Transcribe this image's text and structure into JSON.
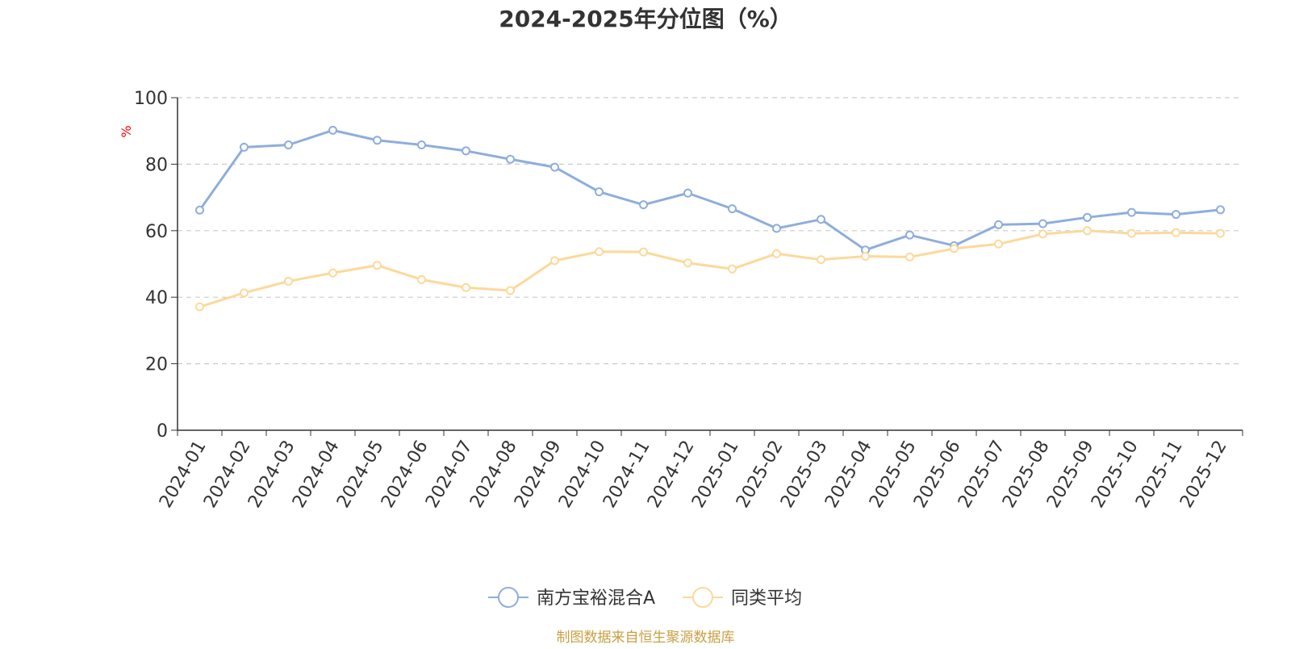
{
  "chart_data": {
    "type": "line",
    "title": "2024-2025年分位图（%）",
    "ylabel": "%",
    "xlabel": "",
    "ylim": [
      0,
      100
    ],
    "yticks": [
      0,
      20,
      40,
      60,
      80,
      100
    ],
    "grid": true,
    "legend_position": "bottom-center",
    "categories": [
      "2024-01",
      "2024-02",
      "2024-03",
      "2024-04",
      "2024-05",
      "2024-06",
      "2024-07",
      "2024-08",
      "2024-09",
      "2024-10",
      "2024-11",
      "2024-12",
      "2025-01",
      "2025-02",
      "2025-03",
      "2025-04",
      "2025-05",
      "2025-06",
      "2025-07",
      "2025-08",
      "2025-09",
      "2025-10",
      "2025-11",
      "2025-12"
    ],
    "series": [
      {
        "name": "南方宝裕混合A",
        "color": "#8eaedb",
        "values": [
          66.2,
          85.1,
          85.8,
          90.2,
          87.2,
          85.8,
          84.0,
          81.5,
          79.1,
          71.7,
          67.8,
          71.3,
          66.6,
          60.7,
          63.4,
          54.2,
          58.7,
          55.5,
          61.8,
          62.1,
          64.0,
          65.5,
          64.9,
          66.3
        ]
      },
      {
        "name": "同类平均",
        "color": "#fcd99a",
        "values": [
          37.1,
          41.3,
          44.8,
          47.3,
          49.6,
          45.3,
          42.9,
          42.0,
          51.0,
          53.7,
          53.6,
          50.3,
          48.5,
          53.1,
          51.3,
          52.3,
          52.1,
          54.6,
          56.0,
          59.0,
          60.0,
          59.2,
          59.4,
          59.2
        ]
      }
    ],
    "source": "制图数据来自恒生聚源数据库",
    "colors": {
      "title": "#333333",
      "axis": "#333333",
      "grid": "#cccccc",
      "ylabel": "#ff0000",
      "source": "#c9a043"
    }
  }
}
